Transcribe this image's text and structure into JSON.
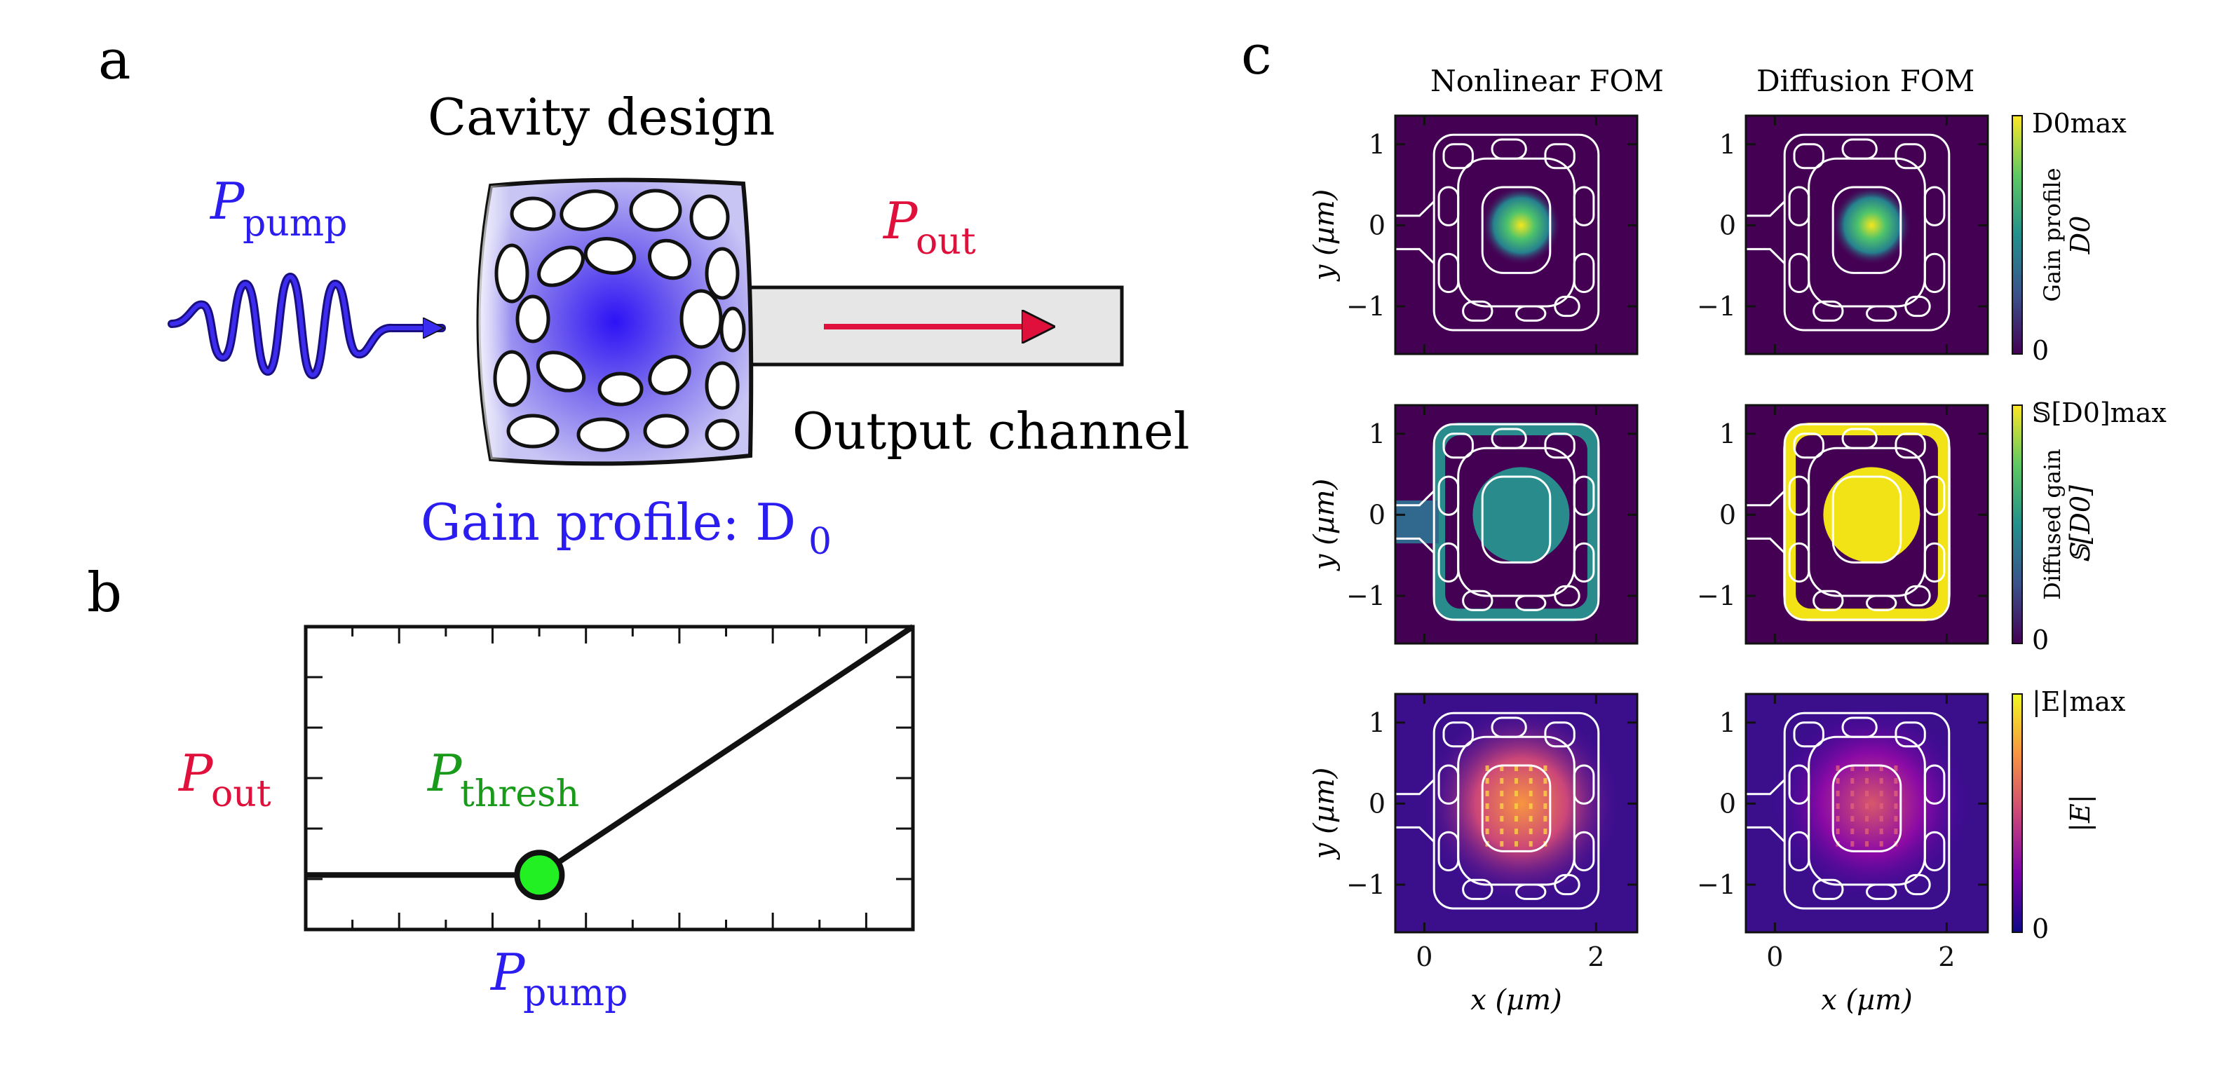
{
  "panel_a": {
    "label": "a",
    "cavity_title": "Cavity design",
    "pump_label": "P",
    "pump_sub": "pump",
    "out_label": "P",
    "out_sub": "out",
    "channel_label": "Output channel",
    "gain_label": "Gain profile: D",
    "gain_sub": "0",
    "colors": {
      "pump": "#2b1df0",
      "out": "#e0103c",
      "cavity_fill": "#aaa4f0",
      "channel_fill": "#e6e6e6"
    }
  },
  "panel_b": {
    "label": "b",
    "ylabel": "P",
    "ylabel_sub": "out",
    "xlabel": "P",
    "xlabel_sub": "pump",
    "thresh_label": "P",
    "thresh_sub": "thresh",
    "colors": {
      "thresh": "#1a9a1a",
      "marker": "#22f022"
    },
    "chart_data": {
      "type": "line",
      "series": [
        {
          "x": [
            0,
            0.385,
            1.0
          ],
          "y": [
            0.18,
            0.18,
            1.0
          ]
        }
      ],
      "threshold_x": 0.385,
      "xlim": [
        0,
        1
      ],
      "ylim": [
        0,
        1
      ],
      "ticks": "inward, unlabeled"
    }
  },
  "panel_c": {
    "label": "c",
    "col_titles": [
      "Nonlinear FOM",
      "Diffusion FOM"
    ],
    "y_axis_label": "y (µm)",
    "x_axis_label": "x (µm)",
    "y_ticks": [
      "1",
      "0",
      "−1"
    ],
    "x_ticks": [
      "0",
      "2"
    ],
    "rows": [
      {
        "colorbar_max": "D0max",
        "colorbar_min": "0",
        "colorbar_title": "Gain profile",
        "colorbar_symbol": "D0",
        "colormap": "viridis"
      },
      {
        "colorbar_max": "𝕊[D0]max",
        "colorbar_min": "0",
        "colorbar_title": "Diffused gain",
        "colorbar_symbol": "𝕊[D0]",
        "colormap": "viridis"
      },
      {
        "colorbar_max": "|E|max",
        "colorbar_min": "0",
        "colorbar_title": "",
        "colorbar_symbol": "|E|",
        "colormap": "plasma"
      }
    ]
  }
}
